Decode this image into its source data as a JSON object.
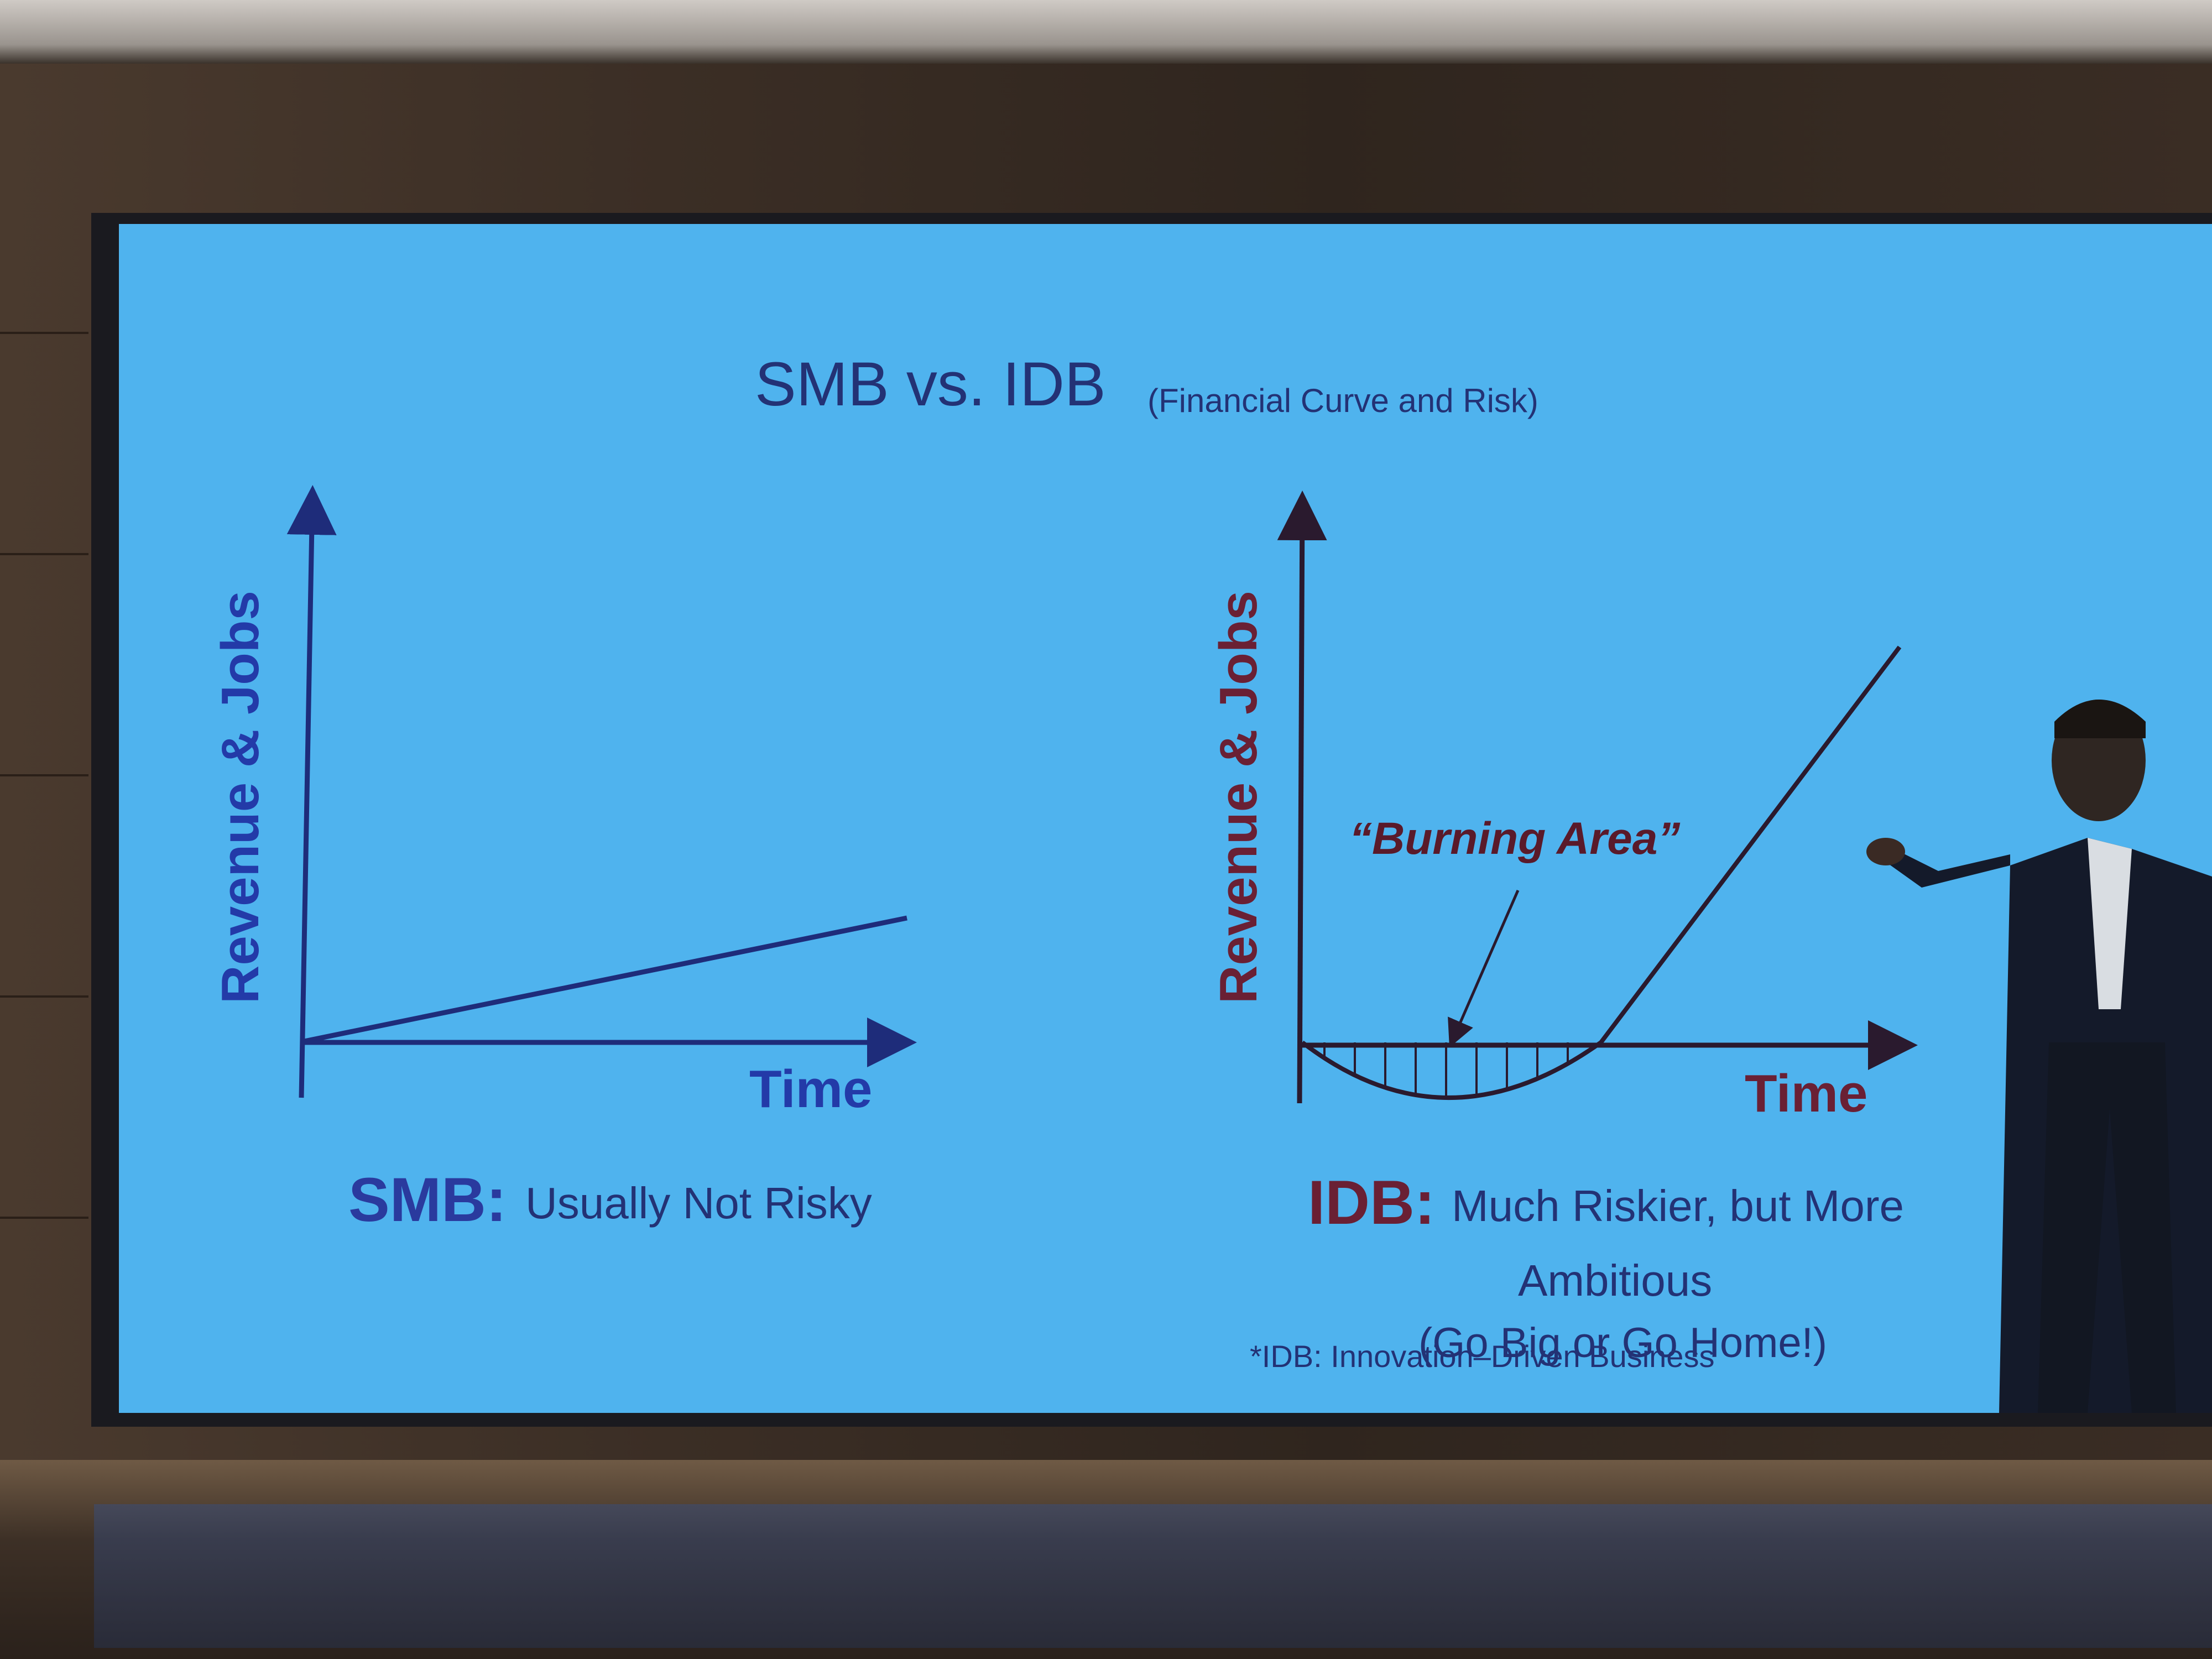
{
  "slide": {
    "title": "SMB vs. IDB",
    "subtitle": "(Financial Curve and Risk)",
    "left_chart": {
      "ylabel": "Revenue & Jobs",
      "xlabel": "Time",
      "caption_key": "SMB:",
      "caption_text": "Usually Not Risky"
    },
    "right_chart": {
      "ylabel": "Revenue & Jobs",
      "xlabel": "Time",
      "annotation": "“Burning Area”",
      "caption_key": "IDB:",
      "caption_text": "Much Riskier, but More",
      "caption_text_2": "Ambitious",
      "caption_text_3": "(Go Big or Go Home!)"
    },
    "footnote": "*IDB: Innovation–Driven Business"
  },
  "colors": {
    "slide_background": "#4fb3ee",
    "title": "#233275",
    "smb_accent": "#233aa8",
    "idb_accent": "#6a2034"
  }
}
